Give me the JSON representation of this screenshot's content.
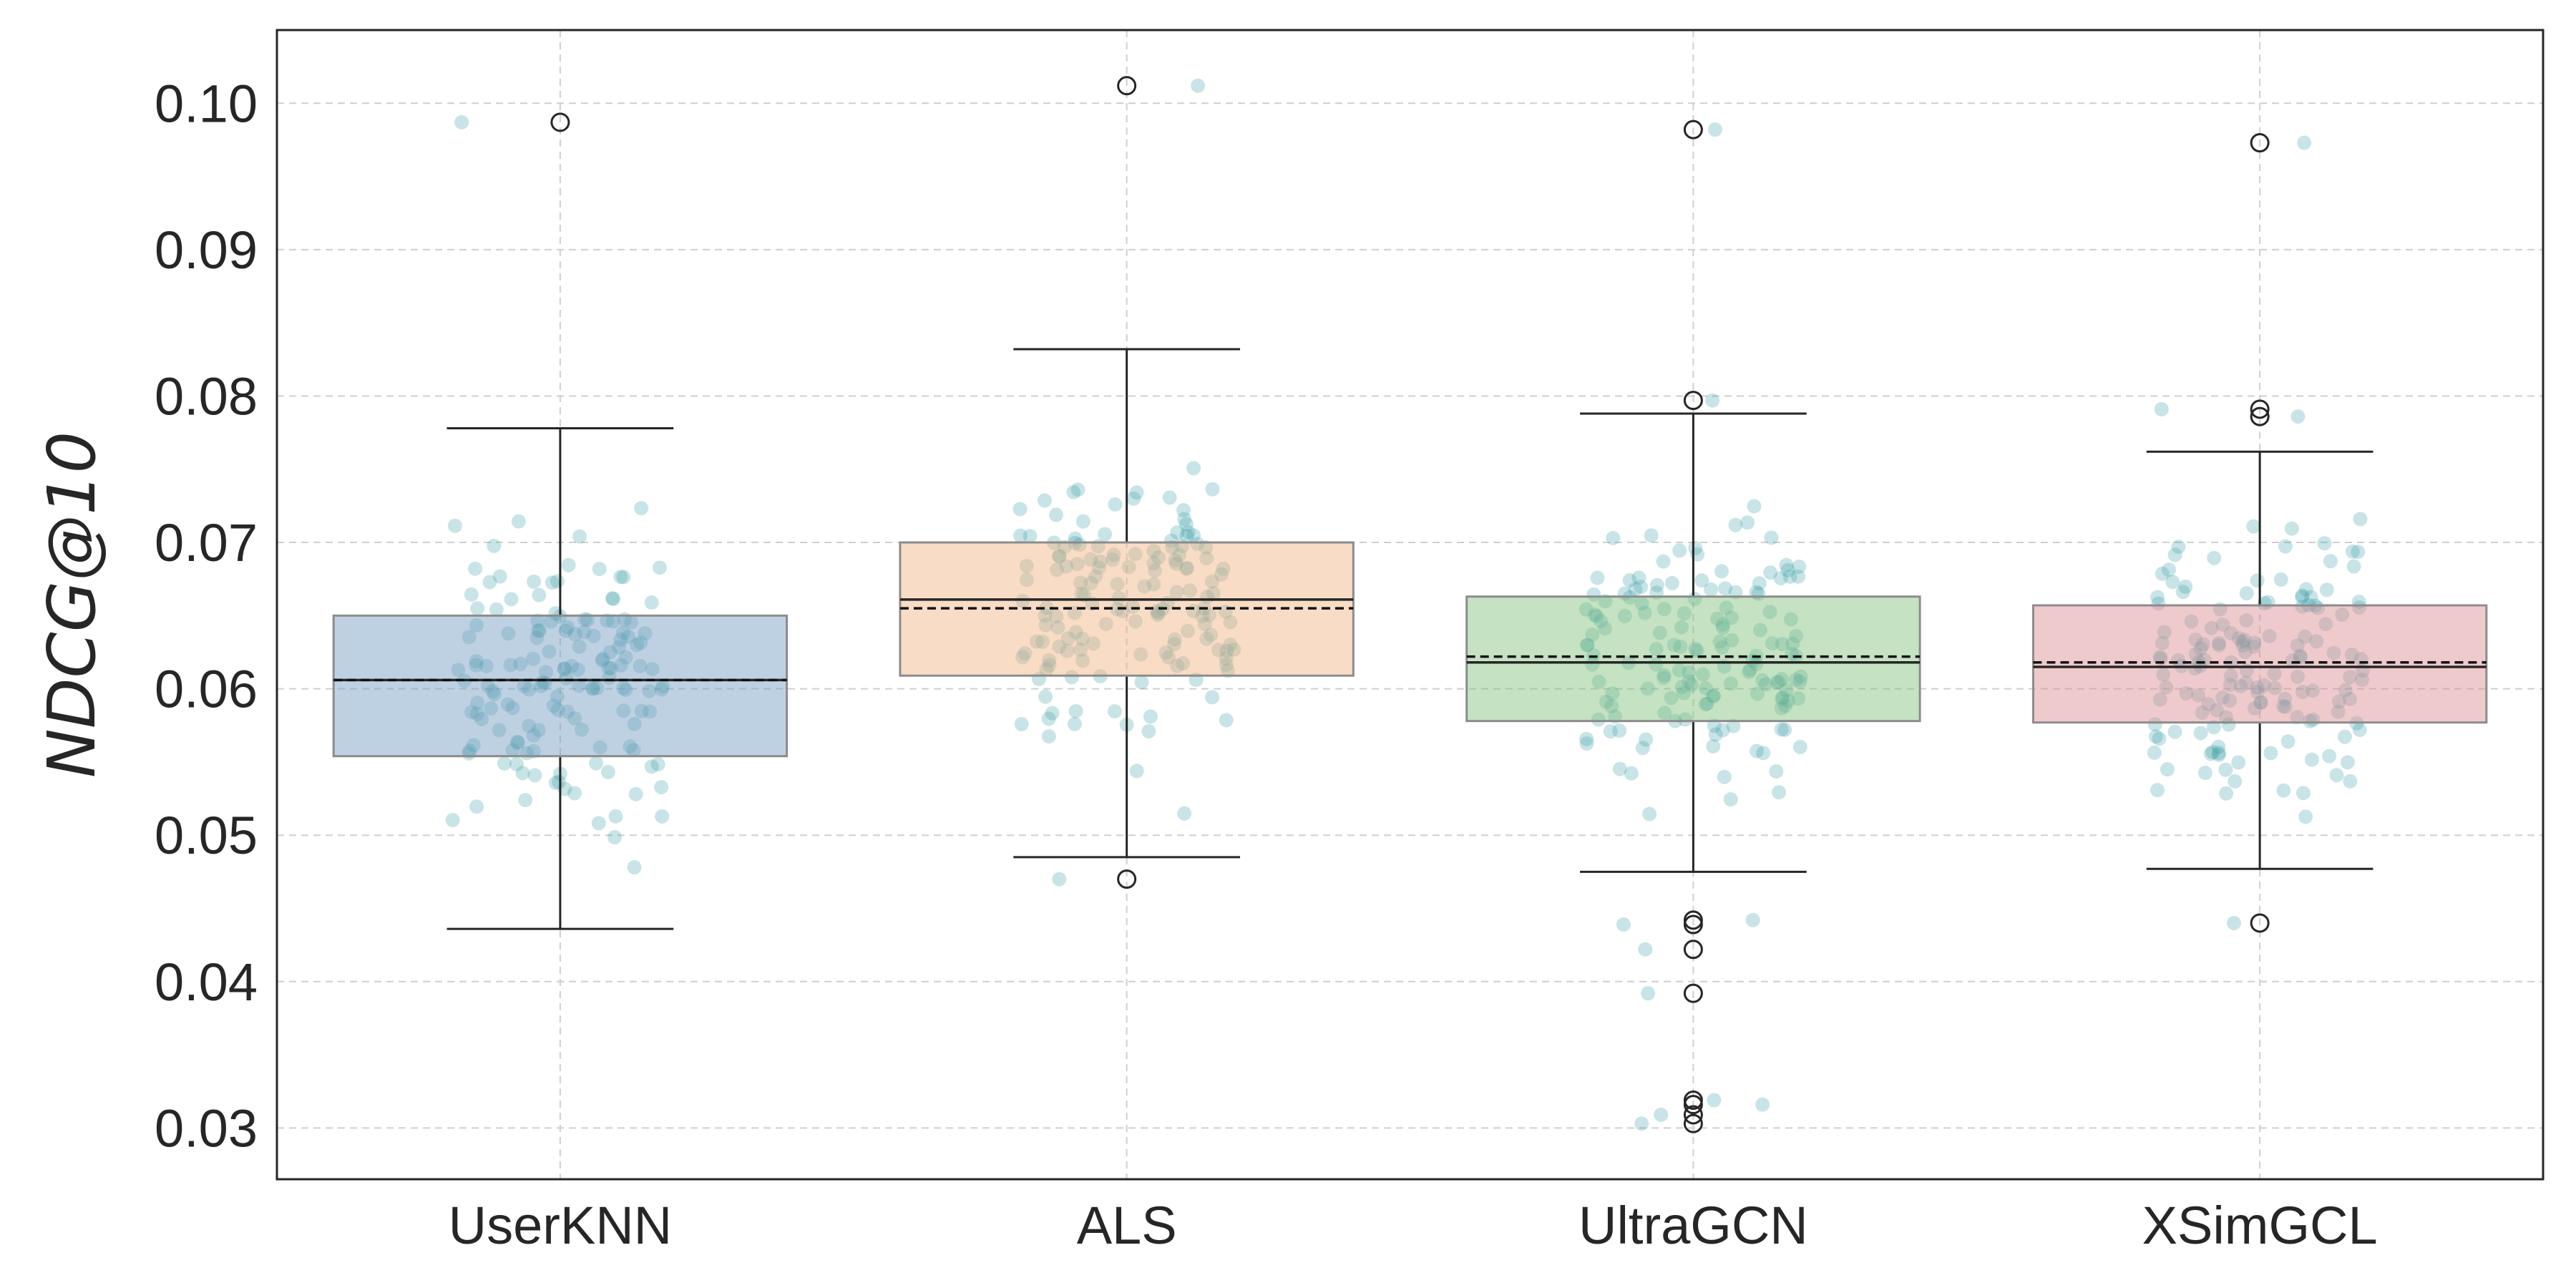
{
  "chart_data": {
    "type": "box",
    "ylabel": "NDCG@10",
    "xlabel": "",
    "ylim": [
      0.0265,
      0.105
    ],
    "yticks": [
      0.03,
      0.04,
      0.05,
      0.06,
      0.07,
      0.08,
      0.09,
      0.1
    ],
    "ytick_labels": [
      "0.03",
      "0.04",
      "0.05",
      "0.06",
      "0.07",
      "0.08",
      "0.09",
      "0.10"
    ],
    "grid": true,
    "categories": [
      "UserKNN",
      "ALS",
      "UltraGCN",
      "XSimGCL"
    ],
    "boxes": [
      {
        "name": "UserKNN",
        "color": "#6f98bf",
        "q1": 0.0554,
        "median": 0.0606,
        "mean": 0.0606,
        "q3": 0.065,
        "whisker_low": 0.0436,
        "whisker_high": 0.0778,
        "outliers": [
          0.0987
        ]
      },
      {
        "name": "ALS",
        "color": "#f2b27e",
        "q1": 0.0609,
        "median": 0.0661,
        "mean": 0.0655,
        "q3": 0.07,
        "whisker_low": 0.0485,
        "whisker_high": 0.0832,
        "outliers": [
          0.1012,
          0.047
        ]
      },
      {
        "name": "UltraGCN",
        "color": "#7fbf7a",
        "q1": 0.0578,
        "median": 0.0618,
        "mean": 0.0622,
        "q3": 0.0663,
        "whisker_low": 0.0475,
        "whisker_high": 0.0788,
        "outliers": [
          0.0982,
          0.0797,
          0.0442,
          0.0439,
          0.0422,
          0.0392,
          0.0319,
          0.0316,
          0.0309,
          0.0303
        ]
      },
      {
        "name": "XSimGCL",
        "color": "#db8a91",
        "q1": 0.0577,
        "median": 0.0615,
        "mean": 0.0618,
        "q3": 0.0657,
        "whisker_low": 0.0477,
        "whisker_high": 0.0762,
        "outliers": [
          0.0973,
          0.0791,
          0.0786,
          0.044
        ]
      }
    ],
    "jitter_color": "#3a9ea5"
  }
}
